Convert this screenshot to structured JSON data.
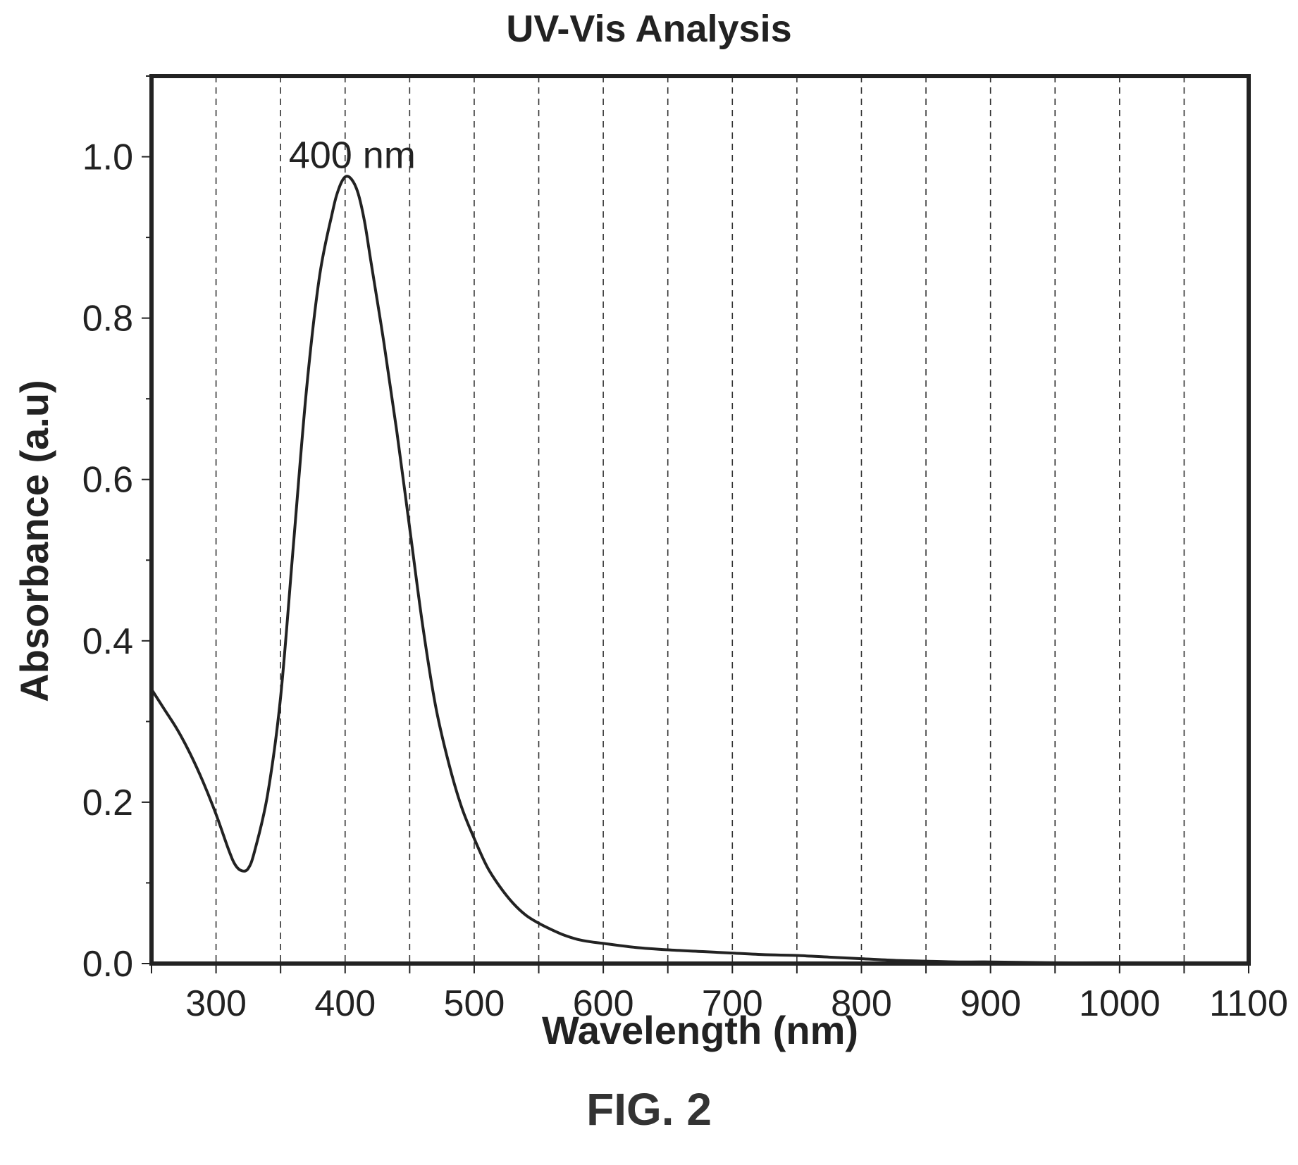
{
  "chart_data": {
    "type": "line",
    "title": "UV-Vis Analysis",
    "xlabel": "Wavelength (nm)",
    "ylabel": "Absorbance (a.u)",
    "xlim": [
      250,
      1100
    ],
    "ylim": [
      0,
      1.1
    ],
    "xticks": [
      300,
      400,
      500,
      600,
      700,
      800,
      900,
      1000,
      1100
    ],
    "yticks": [
      0.0,
      0.2,
      0.4,
      0.6,
      0.8,
      1.0
    ],
    "ytick_labels": [
      "0.0",
      "0.2",
      "0.4",
      "0.6",
      "0.8",
      "1.0"
    ],
    "grid": "vertical dashed lines every 50 nm",
    "legend": "none",
    "line_color": "#222222",
    "series": [
      {
        "x": [
          250,
          260,
          270,
          280,
          290,
          300,
          310,
          315,
          320,
          325,
          330,
          340,
          350,
          360,
          370,
          380,
          390,
          395,
          400,
          405,
          410,
          415,
          420,
          430,
          440,
          450,
          460,
          470,
          480,
          490,
          500,
          510,
          520,
          530,
          540,
          550,
          560,
          570,
          580,
          590,
          600,
          625,
          650,
          675,
          700,
          725,
          750,
          775,
          800,
          825,
          850,
          875,
          900,
          950,
          1000,
          1050,
          1100
        ],
        "y": [
          0.34,
          0.315,
          0.29,
          0.26,
          0.225,
          0.185,
          0.14,
          0.122,
          0.115,
          0.118,
          0.14,
          0.21,
          0.33,
          0.52,
          0.71,
          0.85,
          0.93,
          0.96,
          0.975,
          0.972,
          0.955,
          0.92,
          0.87,
          0.77,
          0.66,
          0.54,
          0.42,
          0.32,
          0.25,
          0.195,
          0.155,
          0.12,
          0.095,
          0.075,
          0.06,
          0.05,
          0.042,
          0.035,
          0.03,
          0.027,
          0.025,
          0.02,
          0.017,
          0.015,
          0.013,
          0.011,
          0.01,
          0.008,
          0.006,
          0.004,
          0.003,
          0.002,
          0.002,
          0.001,
          0.001,
          0.001,
          0.001
        ]
      }
    ],
    "annotations": [
      {
        "text": "400 nm",
        "x": 400,
        "y": 1.0
      }
    ]
  },
  "figure": {
    "caption": "FIG. 2"
  }
}
